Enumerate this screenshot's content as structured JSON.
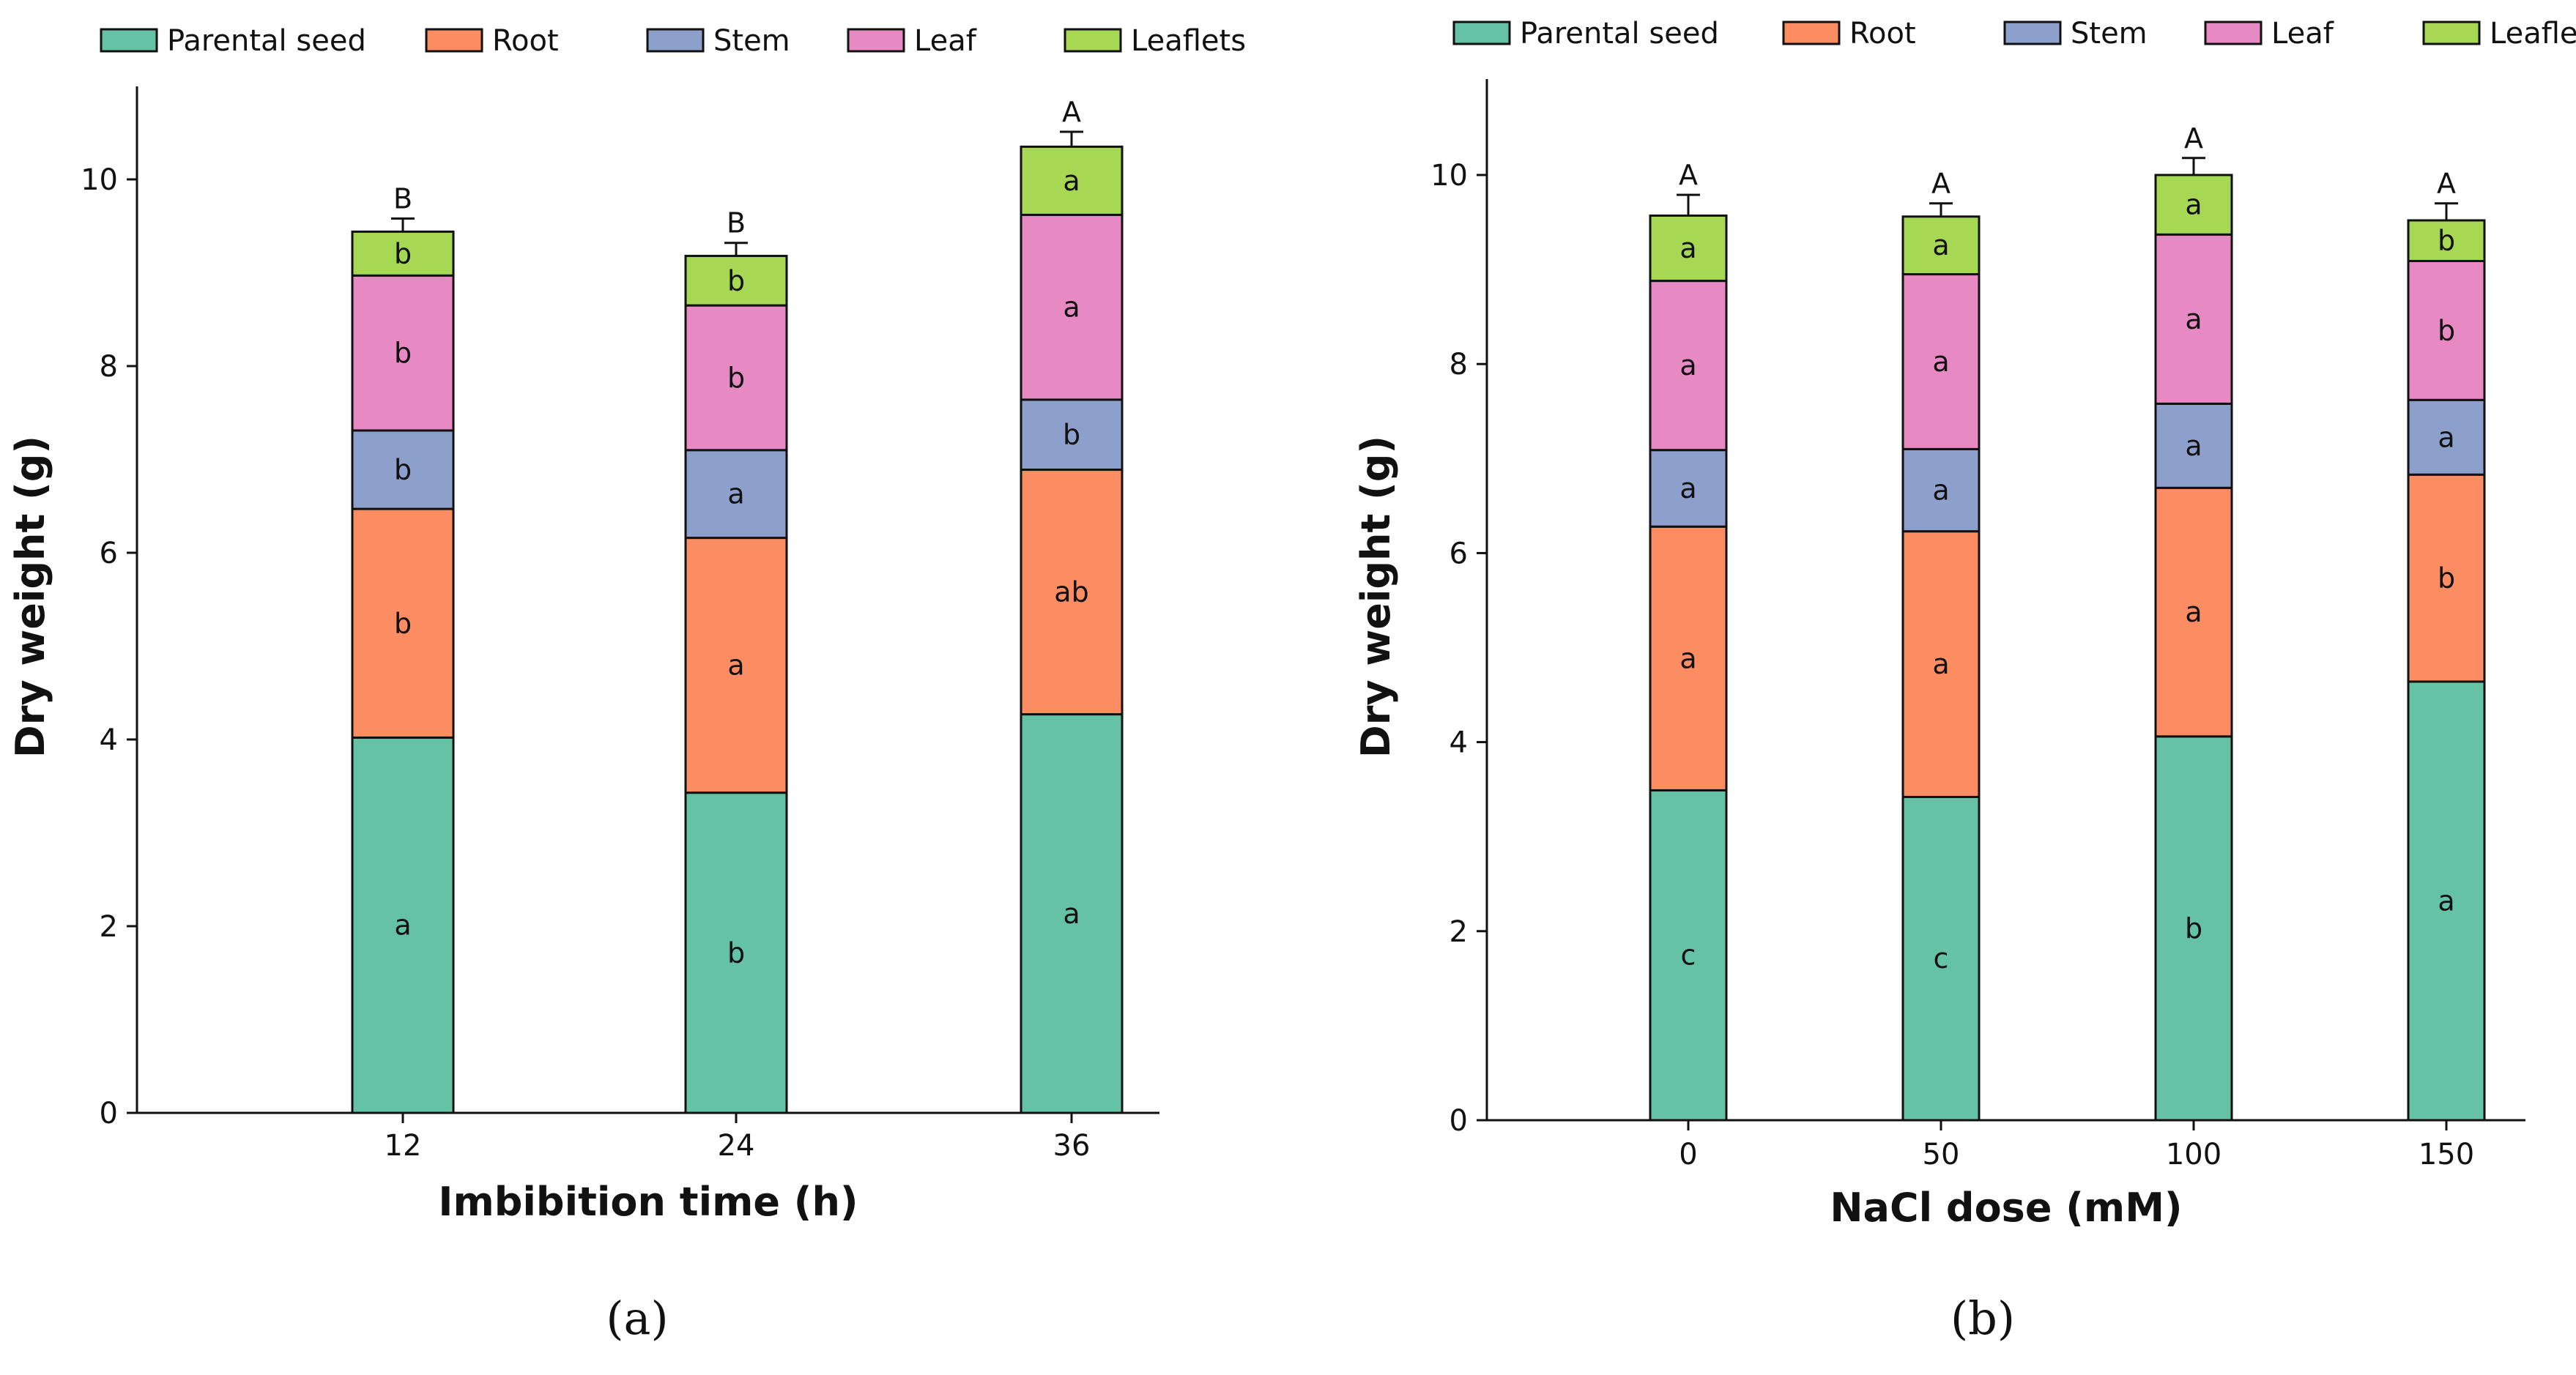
{
  "figure": {
    "panel_labels": [
      "(a)",
      "(b)"
    ]
  },
  "chart_data": [
    {
      "type": "bar",
      "stacked": true,
      "panel": "(a)",
      "title": "",
      "xlabel": "Imbibition time (h)",
      "ylabel": "Dry weight (g)",
      "categories": [
        "12",
        "24",
        "36"
      ],
      "ylim": [
        0,
        11
      ],
      "yticks": [
        0,
        2,
        4,
        6,
        8,
        10
      ],
      "legend_position": "top",
      "series": [
        {
          "name": "Parental seed",
          "color": "#66c2a5",
          "values": [
            4.02,
            3.43,
            4.27
          ],
          "labels": [
            "a",
            "b",
            "a"
          ]
        },
        {
          "name": "Root",
          "color": "#fc8d62",
          "values": [
            2.45,
            2.73,
            2.62
          ],
          "labels": [
            "b",
            "a",
            "ab"
          ]
        },
        {
          "name": "Stem",
          "color": "#8da0cb",
          "values": [
            0.84,
            0.94,
            0.75
          ],
          "labels": [
            "b",
            "a",
            "b"
          ]
        },
        {
          "name": "Leaf",
          "color": "#e78ac3",
          "values": [
            1.66,
            1.55,
            1.98
          ],
          "labels": [
            "b",
            "b",
            "a"
          ]
        },
        {
          "name": "Leaflets",
          "color": "#a6d854",
          "values": [
            0.47,
            0.53,
            0.73
          ],
          "labels": [
            "b",
            "b",
            "a"
          ]
        }
      ],
      "error_bars": [
        0.14,
        0.14,
        0.16
      ],
      "total_labels": [
        "B",
        "B",
        "A"
      ]
    },
    {
      "type": "bar",
      "stacked": true,
      "panel": "(b)",
      "title": "",
      "xlabel": "NaCl dose (mM)",
      "ylabel": "Dry weight (g)",
      "categories": [
        "0",
        "50",
        "100",
        "150"
      ],
      "ylim": [
        0,
        11
      ],
      "yticks": [
        0,
        2,
        4,
        6,
        8,
        10
      ],
      "legend_position": "top",
      "series": [
        {
          "name": "Parental seed",
          "color": "#66c2a5",
          "values": [
            3.49,
            3.42,
            4.06,
            4.64
          ],
          "labels": [
            "c",
            "c",
            "b",
            "a"
          ]
        },
        {
          "name": "Root",
          "color": "#fc8d62",
          "values": [
            2.79,
            2.81,
            2.63,
            2.19
          ],
          "labels": [
            "a",
            "a",
            "a",
            "b"
          ]
        },
        {
          "name": "Stem",
          "color": "#8da0cb",
          "values": [
            0.81,
            0.87,
            0.89,
            0.79
          ],
          "labels": [
            "a",
            "a",
            "a",
            "a"
          ]
        },
        {
          "name": "Leaf",
          "color": "#e78ac3",
          "values": [
            1.79,
            1.85,
            1.79,
            1.47
          ],
          "labels": [
            "a",
            "a",
            "a",
            "b"
          ]
        },
        {
          "name": "Leaflets",
          "color": "#a6d854",
          "values": [
            0.69,
            0.61,
            0.63,
            0.43
          ],
          "labels": [
            "a",
            "a",
            "a",
            "b"
          ]
        }
      ],
      "error_bars": [
        0.22,
        0.14,
        0.18,
        0.18
      ],
      "total_labels": [
        "A",
        "A",
        "A",
        "A"
      ]
    }
  ]
}
